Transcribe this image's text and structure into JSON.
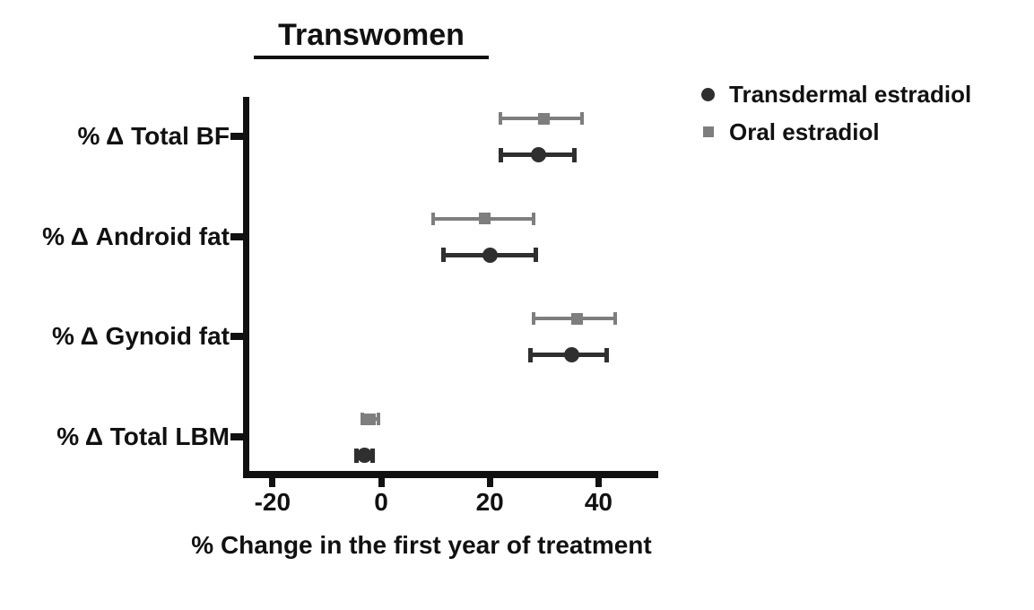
{
  "chart_data": {
    "type": "scatter",
    "variant": "horizontal-error-bar-dot-plot",
    "title": "Transwomen",
    "xlabel": "% Change in the first year of treatment",
    "categories": [
      "% Δ Total BF",
      "% Δ Android fat",
      "% Δ Gynoid fat",
      "% Δ Total LBM"
    ],
    "xticks": [
      -20,
      0,
      20,
      40
    ],
    "xlim": [
      -25,
      50
    ],
    "grid": false,
    "legend_position": "top-right-outside",
    "series": [
      {
        "name": "Transdermal estradiol",
        "marker": "circle",
        "color": "#2f2f2f",
        "values": [
          29,
          20,
          35,
          -3
        ],
        "ci_low": [
          22,
          11.5,
          27.5,
          -4.5
        ],
        "ci_high": [
          35.5,
          28.5,
          41.5,
          -1.5
        ]
      },
      {
        "name": "Oral estradiol",
        "marker": "square",
        "color": "#7e7e7e",
        "values": [
          30,
          19,
          36,
          -2
        ],
        "ci_low": [
          22,
          9.5,
          28,
          -3.5
        ],
        "ci_high": [
          37,
          28,
          43,
          -0.5
        ]
      }
    ]
  },
  "colors": {
    "axis": "#111111",
    "text": "#111111",
    "background": "#ffffff"
  }
}
